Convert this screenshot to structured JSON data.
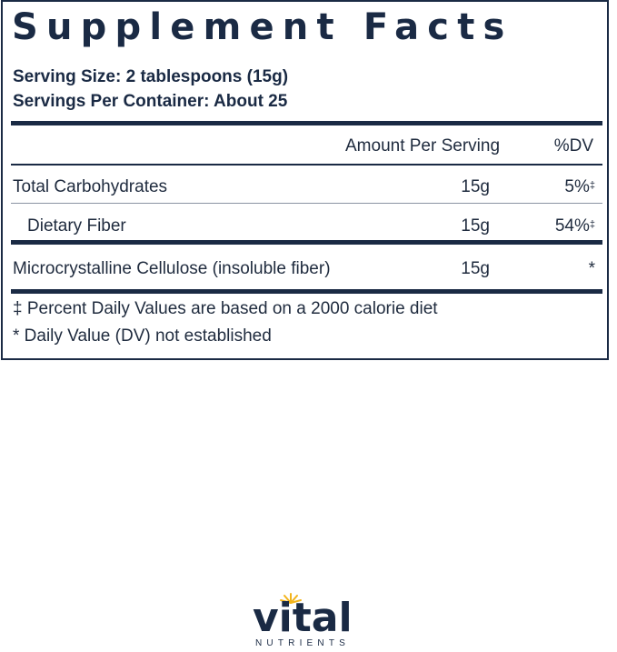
{
  "panel": {
    "title": "Supplement Facts",
    "serving_size": "Serving Size: 2 tablespoons (15g)",
    "servings_per_container": "Servings Per Container: About 25"
  },
  "table": {
    "header_amount": "Amount Per Serving",
    "header_dv": "%DV",
    "rows": [
      {
        "name": "Total Carbohydrates",
        "amount": "15g",
        "dv": "5%",
        "dv_mark": "‡"
      },
      {
        "name": "Dietary Fiber",
        "amount": "15g",
        "dv": "54%",
        "dv_mark": "‡"
      },
      {
        "name": "Microcrystalline Cellulose (insoluble fiber)",
        "amount": "15g",
        "dv": "*",
        "dv_mark": ""
      }
    ]
  },
  "footnotes": {
    "percent_dv": "‡ Percent Daily Values are based on a 2000 calorie diet",
    "not_established": "* Daily Value (DV) not established"
  },
  "brand": {
    "name": "vital",
    "subline": "NUTRIENTS",
    "accent_color": "#f2b41c",
    "text_color": "#1a2a44"
  }
}
